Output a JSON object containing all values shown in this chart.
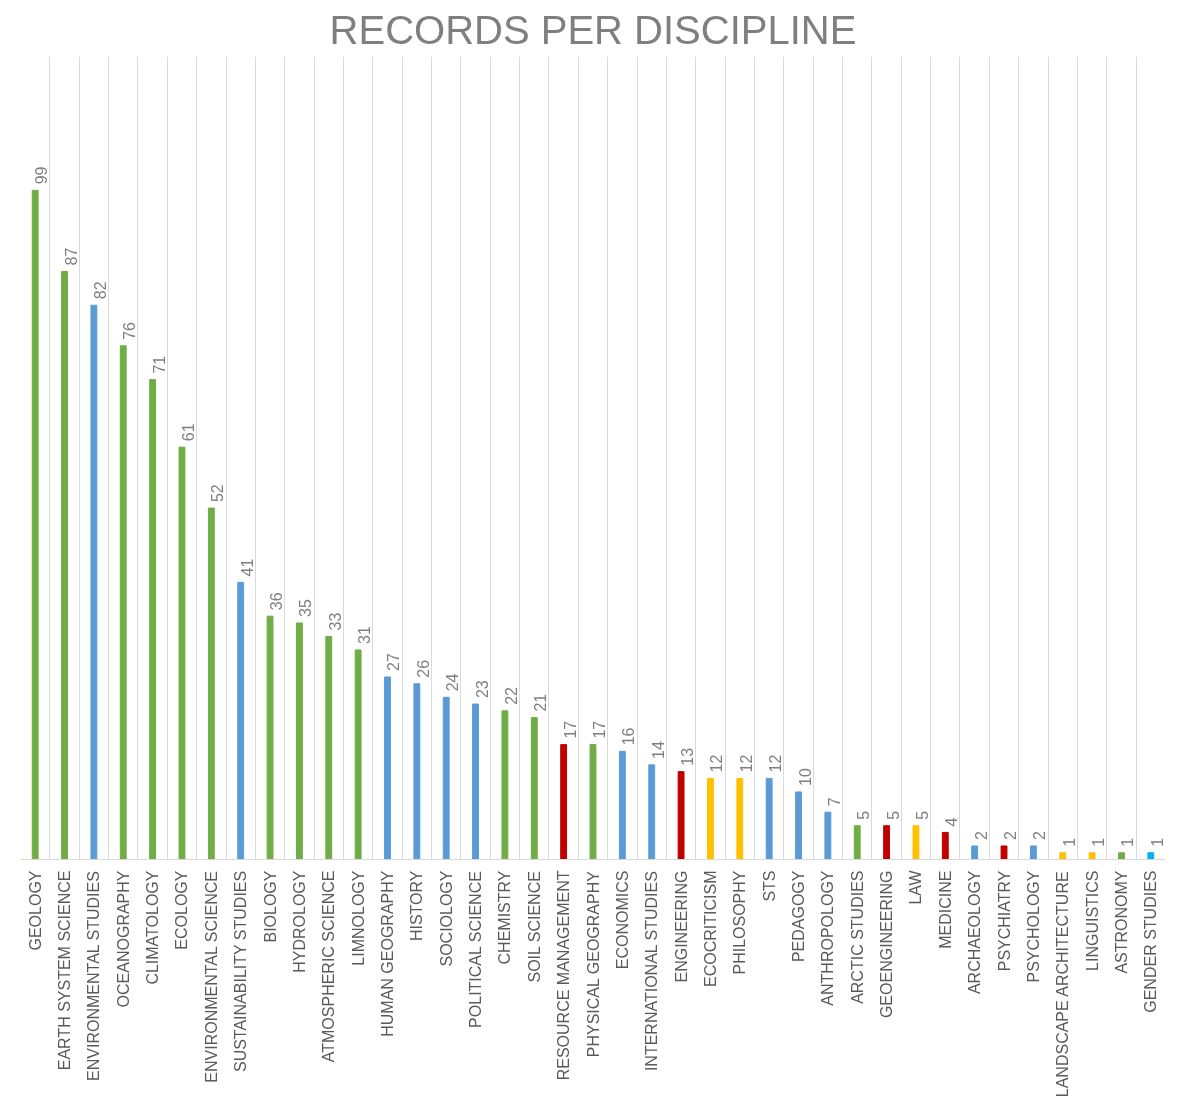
{
  "chart_data": {
    "type": "bar",
    "title": "RECORDS PER DISCIPLINE",
    "categories": [
      "GEOLOGY",
      "EARTH SYSTEM SCIENCE",
      "ENVIRONMENTAL STUDIES",
      "OCEANOGRAPHY",
      "CLIMATOLOGY",
      "ECOLOGY",
      "ENVIRONMENTAL SCIENCE",
      "SUSTAINABILITY STUDIES",
      "BIOLOGY",
      "HYDROLOGY",
      "ATMOSPHERIC SCIENCE",
      "LIMNOLOGY",
      "HUMAN GEOGRAPHY",
      "HISTORY",
      "SOCIOLOGY",
      "POLITICAL SCIENCE",
      "CHEMISTRY",
      "SOIL SCIENCE",
      "RESOURCE MANAGEMENT",
      "PHYSICAL GEOGRAPHY",
      "ECONOMICS",
      "INTERNATIONAL STUDIES",
      "ENGINEERING",
      "ECOCRITICISM",
      "PHILOSOPHY",
      "STS",
      "PEDAGOGY",
      "ANTHROPOLOGY",
      "ARCTIC STUDIES",
      "GEOENGINEERING",
      "LAW",
      "MEDICINE",
      "ARCHAEOLOGY",
      "PSYCHIATRY",
      "PSYCHOLOGY",
      "LANDSCAPE ARCHITECTURE",
      "LINGUISTICS",
      "ASTRONOMY",
      "GENDER STUDIES"
    ],
    "values": [
      99,
      87,
      82,
      76,
      71,
      61,
      52,
      41,
      36,
      35,
      33,
      31,
      27,
      26,
      24,
      23,
      22,
      21,
      17,
      17,
      16,
      14,
      13,
      12,
      12,
      12,
      10,
      7,
      5,
      5,
      5,
      4,
      2,
      2,
      2,
      1,
      1,
      1,
      1
    ],
    "colors": [
      "#70ad47",
      "#70ad47",
      "#5b9bd5",
      "#70ad47",
      "#70ad47",
      "#70ad47",
      "#70ad47",
      "#5b9bd5",
      "#70ad47",
      "#70ad47",
      "#70ad47",
      "#70ad47",
      "#5b9bd5",
      "#5b9bd5",
      "#5b9bd5",
      "#5b9bd5",
      "#70ad47",
      "#70ad47",
      "#c00000",
      "#70ad47",
      "#5b9bd5",
      "#5b9bd5",
      "#c00000",
      "#ffc000",
      "#ffc000",
      "#5b9bd5",
      "#5b9bd5",
      "#5b9bd5",
      "#70ad47",
      "#c00000",
      "#ffc000",
      "#c00000",
      "#5b9bd5",
      "#c00000",
      "#5b9bd5",
      "#ffc000",
      "#ffc000",
      "#70ad47",
      "#00b0f0"
    ],
    "data_labels": true,
    "grid": "x"
  }
}
